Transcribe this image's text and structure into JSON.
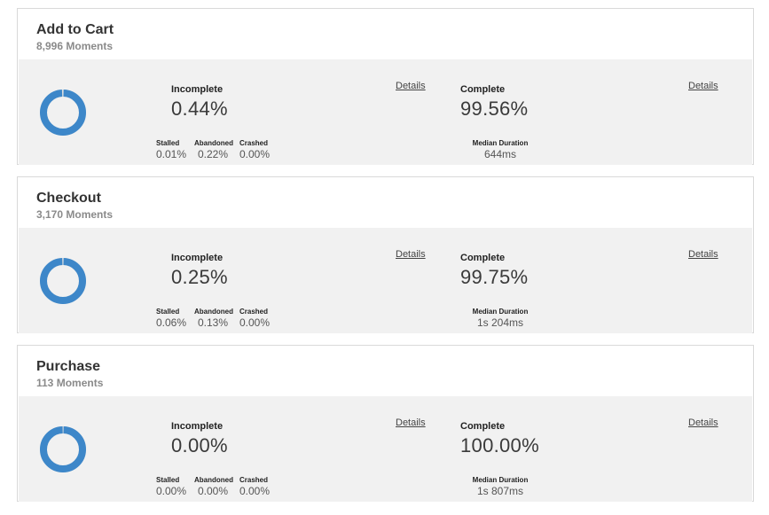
{
  "colors": {
    "donut_ring": "#3d87c9",
    "panel_bg": "#f1f1f1"
  },
  "labels": {
    "incomplete": "Incomplete",
    "complete": "Complete",
    "stalled": "Stalled",
    "abandoned": "Abandoned",
    "crashed": "Crashed",
    "median_duration": "Median Duration",
    "details": "Details"
  },
  "cards": [
    {
      "title": "Add to Cart",
      "moments": "8,996 Moments",
      "incomplete": "0.44%",
      "stalled": "0.01%",
      "abandoned": "0.22%",
      "crashed": "0.00%",
      "complete": "99.56%",
      "median_duration": "644ms",
      "complete_fraction": 0.9956
    },
    {
      "title": "Checkout",
      "moments": "3,170 Moments",
      "incomplete": "0.25%",
      "stalled": "0.06%",
      "abandoned": "0.13%",
      "crashed": "0.00%",
      "complete": "99.75%",
      "median_duration": "1s 204ms",
      "complete_fraction": 0.9975
    },
    {
      "title": "Purchase",
      "moments": "113 Moments",
      "incomplete": "0.00%",
      "stalled": "0.00%",
      "abandoned": "0.00%",
      "crashed": "0.00%",
      "complete": "100.00%",
      "median_duration": "1s 807ms",
      "complete_fraction": 1.0
    }
  ]
}
